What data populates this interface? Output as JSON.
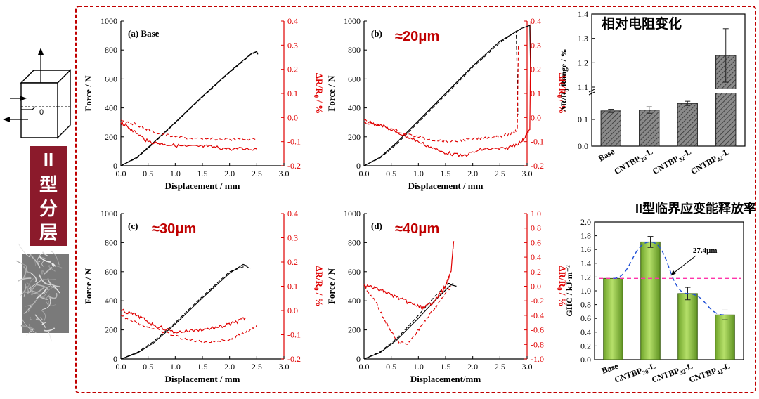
{
  "left_panel": {
    "mode_label": [
      "II",
      "型",
      "分",
      "层"
    ],
    "diagram_origin_label": "0",
    "colors": {
      "mode_bg": "#8b1a2b",
      "mode_text": "#ffffff",
      "frame": "#c00000"
    }
  },
  "panels": [
    {
      "id": "a",
      "tag": "(a) Base",
      "annotation": "",
      "xlabel": "Displacement / mm",
      "ylabel_left": "Force / N",
      "ylabel_right": "ΔR/R0 / %",
      "xlim": [
        0,
        3.0
      ],
      "xticks": [
        "0.0",
        "0.5",
        "1.0",
        "1.5",
        "2.0",
        "2.5",
        "3.0"
      ],
      "ylim_left": [
        0,
        1000
      ],
      "yticks_left": [
        "0",
        "200",
        "400",
        "600",
        "800",
        "1000"
      ],
      "ylim_right": [
        -0.2,
        0.4
      ],
      "yticks_right": [
        "-0.2",
        "-0.1",
        "0.0",
        "0.1",
        "0.2",
        "0.3",
        "0.4"
      ],
      "force_solid": [
        [
          0,
          0
        ],
        [
          0.3,
          60
        ],
        [
          0.6,
          160
        ],
        [
          1.0,
          300
        ],
        [
          1.5,
          480
        ],
        [
          2.0,
          650
        ],
        [
          2.4,
          775
        ],
        [
          2.5,
          790
        ],
        [
          2.52,
          770
        ]
      ],
      "force_dashed": [
        [
          0,
          0
        ],
        [
          0.3,
          55
        ],
        [
          0.6,
          155
        ],
        [
          1.0,
          295
        ],
        [
          1.5,
          475
        ],
        [
          2.0,
          645
        ],
        [
          2.4,
          770
        ],
        [
          2.48,
          782
        ],
        [
          2.5,
          775
        ]
      ],
      "res_solid": [
        [
          0,
          -0.02
        ],
        [
          0.2,
          -0.05
        ],
        [
          0.5,
          -0.1
        ],
        [
          0.8,
          -0.11
        ],
        [
          1.2,
          -0.12
        ],
        [
          1.6,
          -0.12
        ],
        [
          2.0,
          -0.13
        ],
        [
          2.5,
          -0.13
        ]
      ],
      "res_dashed": [
        [
          0,
          -0.01
        ],
        [
          0.3,
          -0.03
        ],
        [
          0.6,
          -0.06
        ],
        [
          1.0,
          -0.08
        ],
        [
          1.5,
          -0.09
        ],
        [
          2.0,
          -0.09
        ],
        [
          2.5,
          -0.09
        ]
      ]
    },
    {
      "id": "b",
      "tag": "(b)",
      "annotation": "≈20μm",
      "xlabel": "Displacement / mm",
      "ylabel_left": "Force / N",
      "ylabel_right": "ΔR/R0 / %",
      "xlim": [
        0,
        3.0
      ],
      "xticks": [
        "0.0",
        "0.5",
        "1.0",
        "1.5",
        "2.0",
        "2.5",
        "3.0"
      ],
      "ylim_left": [
        0,
        1000
      ],
      "yticks_left": [
        "0",
        "200",
        "400",
        "600",
        "800",
        "1000"
      ],
      "ylim_right": [
        -0.2,
        0.4
      ],
      "yticks_right": [
        "-0.2",
        "-0.1",
        "0.0",
        "0.1",
        "0.2",
        "0.3",
        "0.4"
      ],
      "force_solid": [
        [
          0,
          0
        ],
        [
          0.3,
          60
        ],
        [
          0.6,
          160
        ],
        [
          1.0,
          310
        ],
        [
          1.5,
          500
        ],
        [
          2.0,
          690
        ],
        [
          2.5,
          860
        ],
        [
          2.9,
          950
        ],
        [
          3.05,
          970
        ],
        [
          3.07,
          500
        ]
      ],
      "force_dashed": [
        [
          0,
          0
        ],
        [
          0.3,
          55
        ],
        [
          0.6,
          150
        ],
        [
          1.0,
          300
        ],
        [
          1.5,
          490
        ],
        [
          2.0,
          680
        ],
        [
          2.5,
          850
        ],
        [
          2.8,
          930
        ],
        [
          2.82,
          580
        ],
        [
          2.83,
          350
        ]
      ],
      "res_solid": [
        [
          0,
          -0.02
        ],
        [
          0.3,
          -0.03
        ],
        [
          0.6,
          -0.06
        ],
        [
          1.0,
          -0.1
        ],
        [
          1.4,
          -0.14
        ],
        [
          1.8,
          -0.16
        ],
        [
          2.2,
          -0.13
        ],
        [
          2.6,
          -0.13
        ],
        [
          2.9,
          -0.1
        ],
        [
          3.05,
          -0.05
        ],
        [
          3.07,
          0.4
        ]
      ],
      "res_dashed": [
        [
          0,
          -0.01
        ],
        [
          0.4,
          -0.04
        ],
        [
          0.8,
          -0.07
        ],
        [
          1.2,
          -0.09
        ],
        [
          1.6,
          -0.1
        ],
        [
          2.0,
          -0.09
        ],
        [
          2.4,
          -0.08
        ],
        [
          2.7,
          -0.07
        ],
        [
          2.82,
          -0.05
        ],
        [
          2.84,
          0.3
        ]
      ]
    },
    {
      "id": "c",
      "tag": "(c)",
      "annotation": "≈30μm",
      "xlabel": "Displacement / mm",
      "ylabel_left": "Force / N",
      "ylabel_right": "ΔR/R0 / %",
      "xlim": [
        0,
        3.0
      ],
      "xticks": [
        "0.0",
        "0.5",
        "1.0",
        "1.5",
        "2.0",
        "2.5",
        "3.0"
      ],
      "ylim_left": [
        0,
        1000
      ],
      "yticks_left": [
        "0",
        "200",
        "400",
        "600",
        "800",
        "1000"
      ],
      "ylim_right": [
        -0.2,
        0.4
      ],
      "yticks_right": [
        "-0.2",
        "-0.1",
        "0.0",
        "0.1",
        "0.2",
        "0.3",
        "0.4"
      ],
      "force_solid": [
        [
          0,
          0
        ],
        [
          0.3,
          40
        ],
        [
          0.6,
          110
        ],
        [
          1.0,
          240
        ],
        [
          1.5,
          420
        ],
        [
          2.0,
          590
        ],
        [
          2.25,
          650
        ],
        [
          2.32,
          640
        ]
      ],
      "force_dashed": [
        [
          0,
          0
        ],
        [
          0.3,
          45
        ],
        [
          0.6,
          120
        ],
        [
          1.0,
          250
        ],
        [
          1.5,
          430
        ],
        [
          2.0,
          600
        ],
        [
          2.3,
          640
        ],
        [
          2.38,
          620
        ]
      ],
      "res_solid": [
        [
          0,
          0.0
        ],
        [
          0.3,
          -0.02
        ],
        [
          0.6,
          -0.06
        ],
        [
          1.0,
          -0.09
        ],
        [
          1.4,
          -0.08
        ],
        [
          1.8,
          -0.07
        ],
        [
          2.1,
          -0.05
        ],
        [
          2.3,
          -0.03
        ]
      ],
      "res_dashed": [
        [
          0,
          -0.02
        ],
        [
          0.4,
          -0.06
        ],
        [
          0.8,
          -0.09
        ],
        [
          1.2,
          -0.12
        ],
        [
          1.6,
          -0.13
        ],
        [
          2.0,
          -0.12
        ],
        [
          2.3,
          -0.09
        ],
        [
          2.5,
          -0.06
        ]
      ]
    },
    {
      "id": "d",
      "tag": "(d)",
      "annotation": "≈40μm",
      "xlabel": "Displacement/mm",
      "ylabel_left": "Force / N",
      "ylabel_right": "ΔR/R0 / %",
      "xlim": [
        0,
        3.0
      ],
      "xticks": [
        "0.0",
        "0.5",
        "1.0",
        "1.5",
        "2.0",
        "2.5",
        "3.0"
      ],
      "ylim_left": [
        0,
        1000
      ],
      "yticks_left": [
        "0",
        "200",
        "400",
        "600",
        "800",
        "1000"
      ],
      "ylim_right": [
        -1.0,
        1.0
      ],
      "yticks_right": [
        "-1.0",
        "-0.8",
        "-0.6",
        "-0.4",
        "-0.2",
        "0.0",
        "0.2",
        "0.4",
        "0.6",
        "0.8",
        "1.0"
      ],
      "force_solid": [
        [
          0,
          0
        ],
        [
          0.3,
          45
        ],
        [
          0.6,
          130
        ],
        [
          1.0,
          280
        ],
        [
          1.3,
          400
        ],
        [
          1.6,
          510
        ],
        [
          1.7,
          500
        ]
      ],
      "force_dashed": [
        [
          0,
          0
        ],
        [
          0.3,
          50
        ],
        [
          0.6,
          140
        ],
        [
          1.0,
          300
        ],
        [
          1.3,
          430
        ],
        [
          1.55,
          520
        ],
        [
          1.65,
          515
        ]
      ],
      "res_solid": [
        [
          0,
          0.02
        ],
        [
          0.3,
          -0.05
        ],
        [
          0.6,
          -0.15
        ],
        [
          0.9,
          -0.25
        ],
        [
          1.1,
          -0.3
        ],
        [
          1.3,
          -0.2
        ],
        [
          1.5,
          0.0
        ],
        [
          1.6,
          0.2
        ],
        [
          1.65,
          0.62
        ]
      ],
      "res_dashed": [
        [
          0,
          0.0
        ],
        [
          0.2,
          -0.2
        ],
        [
          0.4,
          -0.5
        ],
        [
          0.6,
          -0.75
        ],
        [
          0.8,
          -0.8
        ],
        [
          1.0,
          -0.6
        ],
        [
          1.2,
          -0.4
        ],
        [
          1.4,
          -0.2
        ],
        [
          1.6,
          0.0
        ]
      ]
    }
  ],
  "chart_data": [
    {
      "type": "bar",
      "title": "相对电阻变化",
      "categories": [
        "Base",
        "CNTBP20-L",
        "CNTBP32-L",
        "CNTBP42-L"
      ],
      "values": [
        0.132,
        0.135,
        0.16,
        1.23
      ],
      "errors": [
        0.006,
        0.012,
        0.008,
        0.11
      ],
      "ylabel": "ΔR/R0 Range / %",
      "ylim_lower": [
        0,
        0.2
      ],
      "ylim_upper": [
        1.1,
        1.4
      ],
      "yticks": [
        "0.0",
        "0.1",
        "1.1",
        "1.2",
        "1.3",
        "1.4"
      ],
      "bar_style": "hatched",
      "bar_color": "#666666"
    },
    {
      "type": "bar",
      "title": "II型临界应变能释放率",
      "categories": [
        "Base",
        "CNTBP20-L",
        "CNTBP32-L",
        "CNTBP42-L"
      ],
      "values": [
        1.18,
        1.71,
        0.96,
        0.65
      ],
      "errors": [
        0.0,
        0.08,
        0.09,
        0.07
      ],
      "ylabel": "GIIC / kJ·m⁻²",
      "ylim": [
        0,
        2.0
      ],
      "yticks": [
        "0.0",
        "0.2",
        "0.4",
        "0.6",
        "0.8",
        "1.0",
        "1.2",
        "1.4",
        "1.6",
        "1.8",
        "2.0"
      ],
      "reference_line": 1.18,
      "annotation": "27.4μm",
      "bar_color": "#8dc63f"
    }
  ]
}
